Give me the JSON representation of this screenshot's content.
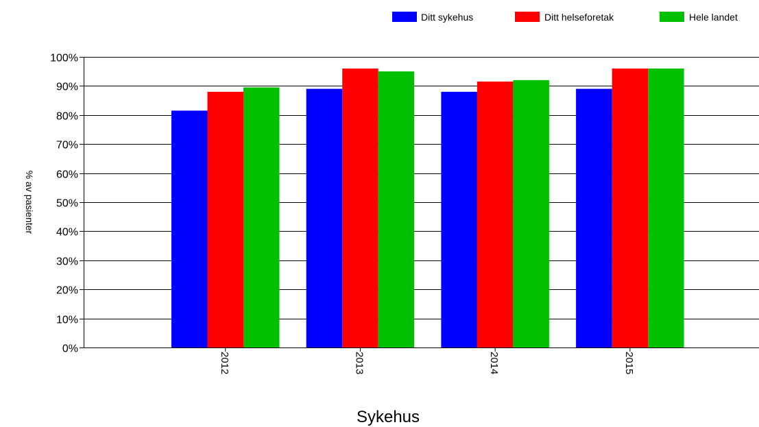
{
  "chart_data": {
    "type": "bar",
    "categories": [
      "2012",
      "2013",
      "2014",
      "2015"
    ],
    "series": [
      {
        "name": "Ditt sykehus",
        "color": "#0000ff",
        "values": [
          81.5,
          89,
          88,
          89
        ]
      },
      {
        "name": "Ditt helseforetak",
        "color": "#ff0000",
        "values": [
          88,
          96,
          91.5,
          96
        ]
      },
      {
        "name": "Hele landet",
        "color": "#00c000",
        "values": [
          89.5,
          95,
          92,
          96
        ]
      }
    ],
    "title": "",
    "xlabel": "Sykehus",
    "ylabel": "% av pasienter",
    "ylim": [
      0,
      100
    ],
    "yticks": [
      "0%",
      "10%",
      "20%",
      "30%",
      "40%",
      "50%",
      "60%",
      "70%",
      "80%",
      "90%",
      "100%"
    ],
    "grid": true,
    "legend_position": "top-right"
  }
}
